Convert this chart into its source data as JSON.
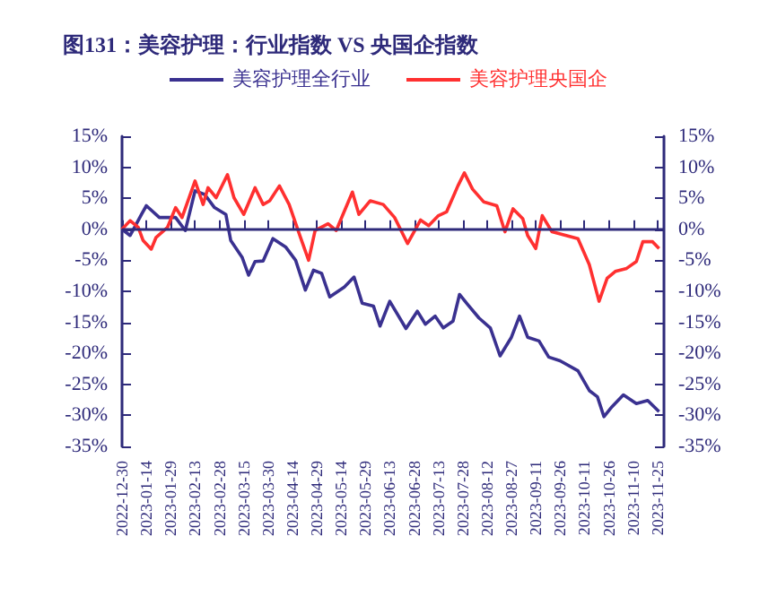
{
  "chart_data": {
    "type": "line",
    "title": "图131：美容护理：行业指数 VS 央国企指数",
    "series": [
      {
        "name": "美容护理全行业",
        "color": "#3a3190",
        "x": [
          "2022-12-30",
          "2023-01-04",
          "2023-01-11",
          "2023-01-14",
          "2023-01-22",
          "2023-02-01",
          "2023-02-07",
          "2023-02-13",
          "2023-02-19",
          "2023-02-25",
          "2023-03-04",
          "2023-03-07",
          "2023-03-14",
          "2023-03-18",
          "2023-03-22",
          "2023-03-27",
          "2023-04-02",
          "2023-04-10",
          "2023-04-16",
          "2023-04-22",
          "2023-04-27",
          "2023-05-02",
          "2023-05-07",
          "2023-05-16",
          "2023-05-22",
          "2023-05-27",
          "2023-06-03",
          "2023-06-07",
          "2023-06-13",
          "2023-06-23",
          "2023-06-30",
          "2023-07-05",
          "2023-07-11",
          "2023-07-16",
          "2023-07-22",
          "2023-07-26",
          "2023-07-31",
          "2023-08-07",
          "2023-08-14",
          "2023-08-20",
          "2023-08-27",
          "2023-09-01",
          "2023-09-06",
          "2023-09-13",
          "2023-09-19",
          "2023-09-26",
          "2023-10-07",
          "2023-10-14",
          "2023-10-19",
          "2023-10-23",
          "2023-10-28",
          "2023-11-04",
          "2023-11-12",
          "2023-11-19",
          "2023-11-26"
        ],
        "values": [
          0,
          -1,
          2.4,
          3.8,
          1.9,
          1.9,
          -0.2,
          6.2,
          5.6,
          3.5,
          2.4,
          -1.8,
          -4.5,
          -7.4,
          -5.2,
          -5.1,
          -1.5,
          -2.9,
          -5,
          -9.8,
          -6.6,
          -7.1,
          -10.9,
          -9.3,
          -7.7,
          -11.9,
          -12.4,
          -15.6,
          -11.6,
          -16,
          -13.2,
          -15.3,
          -14,
          -15.9,
          -14.8,
          -10.5,
          -12.1,
          -14.3,
          -15.9,
          -20.4,
          -17.4,
          -14,
          -17.4,
          -18,
          -20.6,
          -21.2,
          -22.8,
          -26,
          -27,
          -30.2,
          -28.6,
          -26.7,
          -28.1,
          -27.6,
          -29.4
        ]
      },
      {
        "name": "美容护理央国企",
        "color": "#ff3030",
        "x": [
          "2022-12-30",
          "2023-01-04",
          "2023-01-09",
          "2023-01-12",
          "2023-01-17",
          "2023-01-20",
          "2023-01-27",
          "2023-02-01",
          "2023-02-05",
          "2023-02-13",
          "2023-02-18",
          "2023-02-21",
          "2023-02-26",
          "2023-03-05",
          "2023-03-09",
          "2023-03-15",
          "2023-03-22",
          "2023-03-27",
          "2023-03-31",
          "2023-04-06",
          "2023-04-12",
          "2023-04-19",
          "2023-04-24",
          "2023-04-28",
          "2023-05-06",
          "2023-05-11",
          "2023-05-21",
          "2023-05-25",
          "2023-06-01",
          "2023-06-09",
          "2023-06-16",
          "2023-06-24",
          "2023-07-02",
          "2023-07-07",
          "2023-07-13",
          "2023-07-18",
          "2023-07-25",
          "2023-07-29",
          "2023-08-03",
          "2023-08-10",
          "2023-08-18",
          "2023-08-23",
          "2023-08-28",
          "2023-09-03",
          "2023-09-06",
          "2023-09-11",
          "2023-09-15",
          "2023-09-21",
          "2023-10-07",
          "2023-10-14",
          "2023-10-20",
          "2023-10-25",
          "2023-10-30",
          "2023-11-06",
          "2023-11-12",
          "2023-11-16",
          "2023-11-22",
          "2023-11-26"
        ],
        "values": [
          0,
          1.4,
          0.3,
          -1.8,
          -3.2,
          -1.3,
          0.3,
          3.5,
          1.9,
          7.8,
          4,
          6.7,
          5.1,
          8.8,
          5.1,
          2.4,
          6.7,
          4,
          4.6,
          7,
          4,
          -1.3,
          -5,
          -0.2,
          0.9,
          -0.2,
          6,
          2.4,
          4.6,
          4,
          1.9,
          -2.3,
          1.5,
          0.6,
          2.2,
          2.8,
          7,
          9.1,
          6.5,
          4.4,
          3.8,
          -0.4,
          3.3,
          1.7,
          -1,
          -3.1,
          2.2,
          -0.4,
          -1.5,
          -5.7,
          -11.6,
          -7.9,
          -6.8,
          -6.3,
          -5.2,
          -2,
          -2,
          -3.1
        ]
      }
    ],
    "xlim": [
      "2022-12-30",
      "2023-11-29"
    ],
    "xticks": [
      "2022-12-30",
      "2023-01-14",
      "2023-01-29",
      "2023-02-13",
      "2023-02-28",
      "2023-03-15",
      "2023-03-30",
      "2023-04-14",
      "2023-04-29",
      "2023-05-14",
      "2023-05-29",
      "2023-06-13",
      "2023-06-28",
      "2023-07-13",
      "2023-07-28",
      "2023-08-12",
      "2023-08-27",
      "2023-09-11",
      "2023-09-26",
      "2023-10-11",
      "2023-10-26",
      "2023-11-10",
      "2023-11-25"
    ],
    "ylim": [
      -35,
      15
    ],
    "yticks": [
      {
        "value": -35,
        "label": "-35%"
      },
      {
        "value": -30,
        "label": "-30%"
      },
      {
        "value": -25,
        "label": "-25%"
      },
      {
        "value": -20,
        "label": "-20%"
      },
      {
        "value": -15,
        "label": "-15%"
      },
      {
        "value": -10,
        "label": "-10%"
      },
      {
        "value": -5,
        "label": "-5%"
      },
      {
        "value": 0,
        "label": "0%"
      },
      {
        "value": 5,
        "label": "5%"
      },
      {
        "value": 10,
        "label": "10%"
      },
      {
        "value": 15,
        "label": "15%"
      }
    ],
    "y2lim": [
      -35,
      15
    ],
    "y2ticks": [
      {
        "value": -35,
        "label": "-35%"
      },
      {
        "value": -30,
        "label": "-30%"
      },
      {
        "value": -25,
        "label": "-25%"
      },
      {
        "value": -20,
        "label": "-20%"
      },
      {
        "value": -15,
        "label": "-15%"
      },
      {
        "value": -10,
        "label": "-10%"
      },
      {
        "value": -5,
        "label": "-5%"
      },
      {
        "value": 0,
        "label": "0%"
      },
      {
        "value": 5,
        "label": "5%"
      },
      {
        "value": 10,
        "label": "10%"
      },
      {
        "value": 15,
        "label": "15%"
      }
    ],
    "ref_lines": [
      {
        "axis": "y",
        "value": 0,
        "color": "#2e2a7a"
      }
    ],
    "grid": false,
    "legend": "top",
    "marker": "none",
    "line_style": "solid"
  }
}
